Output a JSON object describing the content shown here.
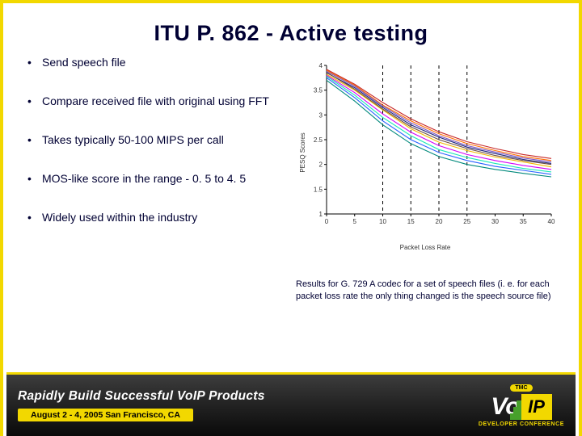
{
  "title": "ITU P. 862 - Active testing",
  "bullets": [
    "Send speech file",
    "Compare received file with original using FFT",
    "Takes typically 50-100 MIPS per call",
    "MOS-like score in the range - 0. 5 to 4. 5",
    "Widely used within the industry"
  ],
  "chart": {
    "type": "line",
    "ylabel": "PESQ Scores",
    "xlabel": "Packet Loss Rate",
    "xlim": [
      0,
      40
    ],
    "ylim": [
      1,
      4
    ],
    "xticks": [
      0,
      5,
      10,
      15,
      20,
      25,
      30,
      35,
      40
    ],
    "yticks": [
      1,
      1.5,
      2,
      2.5,
      3,
      3.5,
      4
    ],
    "guide_x": [
      10,
      15,
      20,
      25
    ],
    "guide_style": "dashed",
    "guide_color": "#000000",
    "tick_fontsize": 8,
    "label_fontsize": 8,
    "background_color": "#ffffff",
    "axis_color": "#000000",
    "line_width": 1.1,
    "series": [
      {
        "color": "#1a237e",
        "x": [
          0,
          5,
          10,
          15,
          20,
          25,
          30,
          35,
          40
        ],
        "y": [
          3.85,
          3.55,
          3.15,
          2.8,
          2.55,
          2.35,
          2.22,
          2.1,
          2.02
        ]
      },
      {
        "color": "#f3b700",
        "x": [
          0,
          5,
          10,
          15,
          20,
          25,
          30,
          35,
          40
        ],
        "y": [
          3.82,
          3.5,
          3.1,
          2.72,
          2.45,
          2.28,
          2.15,
          2.05,
          1.95
        ]
      },
      {
        "color": "#d500f9",
        "x": [
          0,
          5,
          10,
          15,
          20,
          25,
          30,
          35,
          40
        ],
        "y": [
          3.8,
          3.45,
          3.02,
          2.65,
          2.38,
          2.2,
          2.08,
          1.98,
          1.9
        ]
      },
      {
        "color": "#1de9b6",
        "x": [
          0,
          5,
          10,
          15,
          20,
          25,
          30,
          35,
          40
        ],
        "y": [
          3.78,
          3.4,
          2.95,
          2.58,
          2.3,
          2.14,
          2.02,
          1.92,
          1.85
        ]
      },
      {
        "color": "#ff6d00",
        "x": [
          0,
          5,
          10,
          15,
          20,
          25,
          30,
          35,
          40
        ],
        "y": [
          3.9,
          3.6,
          3.2,
          2.88,
          2.62,
          2.42,
          2.28,
          2.16,
          2.08
        ]
      },
      {
        "color": "#2962ff",
        "x": [
          0,
          5,
          10,
          15,
          20,
          25,
          30,
          35,
          40
        ],
        "y": [
          3.75,
          3.35,
          2.88,
          2.5,
          2.24,
          2.08,
          1.96,
          1.88,
          1.8
        ]
      },
      {
        "color": "#7e57c2",
        "x": [
          0,
          5,
          10,
          15,
          20,
          25,
          30,
          35,
          40
        ],
        "y": [
          3.88,
          3.58,
          3.18,
          2.84,
          2.58,
          2.38,
          2.25,
          2.13,
          2.05
        ]
      },
      {
        "color": "#c62828",
        "x": [
          0,
          5,
          10,
          15,
          20,
          25,
          30,
          35,
          40
        ],
        "y": [
          3.92,
          3.62,
          3.25,
          2.92,
          2.66,
          2.46,
          2.32,
          2.2,
          2.12
        ]
      },
      {
        "color": "#00897b",
        "x": [
          0,
          5,
          10,
          15,
          20,
          25,
          30,
          35,
          40
        ],
        "y": [
          3.7,
          3.28,
          2.8,
          2.42,
          2.16,
          2.0,
          1.9,
          1.82,
          1.75
        ]
      },
      {
        "color": "#6d4c41",
        "x": [
          0,
          5,
          10,
          15,
          20,
          25,
          30,
          35,
          40
        ],
        "y": [
          3.86,
          3.52,
          3.12,
          2.76,
          2.5,
          2.32,
          2.18,
          2.08,
          2.0
        ]
      }
    ]
  },
  "caption": "Results for G. 729 A codec for a set of speech files (i. e. for each packet loss rate the only thing changed is the speech source file)",
  "banner": {
    "headline": "Rapidly Build Successful VoIP Products",
    "subline": "August 2 - 4, 2005 San Francisco, CA",
    "logo_tmc": "TMC",
    "logo_vo": "Vo",
    "logo_ip": "IP",
    "logo_dev": "DEVELOPER CONFERENCE",
    "colors": {
      "bg_top": "#3d3d3d",
      "bg_bottom": "#0a0a0a",
      "accent_yellow": "#f2d800",
      "accent_green": "#47a02b",
      "text": "#ffffff"
    }
  }
}
